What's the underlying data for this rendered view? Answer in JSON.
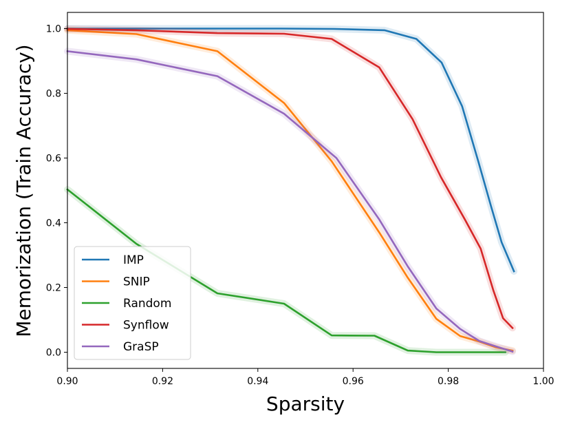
{
  "chart_data": {
    "type": "line",
    "title": "",
    "xlabel": "Sparsity",
    "ylabel": "Memorization (Train Accuracy)",
    "xlim": [
      0.9,
      1.0
    ],
    "ylim": [
      -0.05,
      1.05
    ],
    "xticks": [
      0.9,
      0.92,
      0.94,
      0.96,
      0.98,
      1.0
    ],
    "xtick_labels": [
      "0.90",
      "0.92",
      "0.94",
      "0.96",
      "0.98",
      "1.00"
    ],
    "yticks": [
      0.0,
      0.2,
      0.4,
      0.6,
      0.8,
      1.0
    ],
    "ytick_labels": [
      "0.0",
      "0.2",
      "0.4",
      "0.6",
      "0.8",
      "1.0"
    ],
    "grid": false,
    "legend_position": "lower-left",
    "series": [
      {
        "name": "IMP",
        "color": "#1f77b4",
        "x": [
          0.9,
          0.914,
          0.931,
          0.945,
          0.956,
          0.9666,
          0.9733,
          0.9786,
          0.9829,
          0.9863,
          0.989,
          0.9912,
          0.9938
        ],
        "y": [
          1.0,
          1.0,
          1.0,
          1.0,
          0.999,
          0.995,
          0.968,
          0.895,
          0.76,
          0.59,
          0.45,
          0.34,
          0.25
        ]
      },
      {
        "name": "SNIP",
        "color": "#ff7f0e",
        "x": [
          0.9,
          0.9145,
          0.9315,
          0.9455,
          0.9555,
          0.9655,
          0.9715,
          0.9775,
          0.9825,
          0.9865,
          0.99,
          0.9935
        ],
        "y": [
          0.995,
          0.983,
          0.93,
          0.77,
          0.59,
          0.37,
          0.23,
          0.103,
          0.05,
          0.033,
          0.015,
          0.005
        ]
      },
      {
        "name": "Random",
        "color": "#2ca02c",
        "x": [
          0.9,
          0.9145,
          0.9315,
          0.9455,
          0.9555,
          0.9645,
          0.9715,
          0.9775,
          0.9825,
          0.9865,
          0.99,
          0.992
        ],
        "y": [
          0.503,
          0.335,
          0.182,
          0.15,
          0.052,
          0.051,
          0.005,
          0.0,
          0.0,
          0.0,
          0.0,
          0.0
        ]
      },
      {
        "name": "Synflow",
        "color": "#d62728",
        "x": [
          0.9,
          0.9145,
          0.9315,
          0.9455,
          0.9555,
          0.9655,
          0.9725,
          0.9785,
          0.9835,
          0.9868,
          0.9895,
          0.9915,
          0.9935
        ],
        "y": [
          0.999,
          0.995,
          0.986,
          0.984,
          0.968,
          0.88,
          0.72,
          0.54,
          0.41,
          0.32,
          0.19,
          0.105,
          0.075
        ]
      },
      {
        "name": "GraSP",
        "color": "#9467bd",
        "x": [
          0.9,
          0.9145,
          0.9315,
          0.9455,
          0.9565,
          0.9655,
          0.9715,
          0.9775,
          0.9825,
          0.9865,
          0.99,
          0.9935
        ],
        "y": [
          0.93,
          0.905,
          0.853,
          0.737,
          0.6,
          0.41,
          0.265,
          0.135,
          0.072,
          0.035,
          0.018,
          0.002
        ]
      }
    ]
  }
}
